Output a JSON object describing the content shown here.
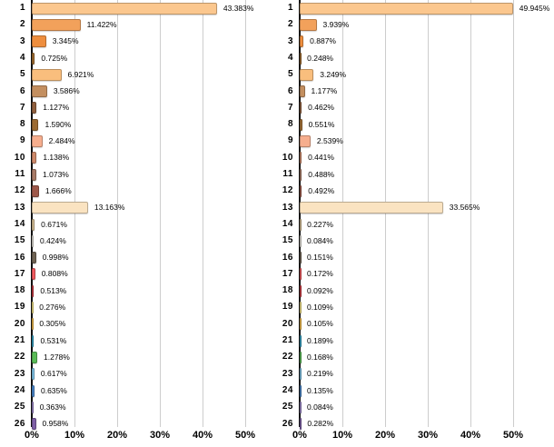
{
  "styles": {
    "background": "#ffffff",
    "axis_color": "#111111",
    "grid_color": "#cdcdcd",
    "text_color": "#000000"
  },
  "palette": [
    "#FBC78E",
    "#F2A15B",
    "#EE8E3E",
    "#9E6B2F",
    "#F9BE7D",
    "#C38F60",
    "#91603F",
    "#9C6B33",
    "#F6AE8E",
    "#CE8A6B",
    "#A87B67",
    "#9D584A",
    "#FAE3C1",
    "#D3BD95",
    "#E7E4DC",
    "#6F6354",
    "#F25A5F",
    "#CC3B43",
    "#F5E488",
    "#F4BE4E",
    "#35A2C4",
    "#5ABB57",
    "#7FC3E6",
    "#4A86C9",
    "#9C88C9",
    "#7E5FA6"
  ],
  "chart_data": [
    {
      "type": "bar",
      "orientation": "horizontal",
      "title": "",
      "xlabel": "",
      "ylabel": "",
      "grid": true,
      "legend": false,
      "xlim": [
        0,
        55
      ],
      "x_ticks": [
        "0%",
        "10%",
        "20%",
        "30%",
        "40%",
        "50%"
      ],
      "x_tick_values": [
        0,
        10,
        20,
        30,
        40,
        50
      ],
      "categories": [
        "1",
        "2",
        "3",
        "4",
        "5",
        "6",
        "7",
        "8",
        "9",
        "10",
        "11",
        "12",
        "13",
        "14",
        "15",
        "16",
        "17",
        "18",
        "19",
        "20",
        "21",
        "22",
        "23",
        "24",
        "25",
        "26"
      ],
      "values": [
        43.383,
        11.422,
        3.345,
        0.725,
        6.921,
        3.586,
        1.127,
        1.59,
        2.484,
        1.138,
        1.073,
        1.666,
        13.163,
        0.671,
        0.424,
        0.998,
        0.808,
        0.513,
        0.276,
        0.305,
        0.531,
        1.278,
        0.617,
        0.635,
        0.363,
        0.958
      ],
      "value_labels": [
        "43.383%",
        "11.422%",
        "3.345%",
        "0.725%",
        "6.921%",
        "3.586%",
        "1.127%",
        "1.590%",
        "2.484%",
        "1.138%",
        "1.073%",
        "1.666%",
        "13.163%",
        "0.671%",
        "0.424%",
        "0.998%",
        "0.808%",
        "0.513%",
        "0.276%",
        "0.305%",
        "0.531%",
        "1.278%",
        "0.617%",
        "0.635%",
        "0.363%",
        "0.958%"
      ]
    },
    {
      "type": "bar",
      "orientation": "horizontal",
      "title": "",
      "xlabel": "",
      "ylabel": "",
      "grid": true,
      "legend": false,
      "xlim": [
        0,
        55
      ],
      "x_ticks": [
        "0%",
        "10%",
        "20%",
        "30%",
        "40%",
        "50%"
      ],
      "x_tick_values": [
        0,
        10,
        20,
        30,
        40,
        50
      ],
      "categories": [
        "1",
        "2",
        "3",
        "4",
        "5",
        "6",
        "7",
        "8",
        "9",
        "10",
        "11",
        "12",
        "13",
        "14",
        "15",
        "16",
        "17",
        "18",
        "19",
        "20",
        "21",
        "22",
        "23",
        "24",
        "25",
        "26"
      ],
      "values": [
        49.945,
        3.939,
        0.887,
        0.248,
        3.249,
        1.177,
        0.462,
        0.551,
        2.539,
        0.441,
        0.488,
        0.492,
        33.565,
        0.227,
        0.084,
        0.151,
        0.172,
        0.092,
        0.109,
        0.105,
        0.189,
        0.168,
        0.219,
        0.135,
        0.084,
        0.282
      ],
      "value_labels": [
        "49.945%",
        "3.939%",
        "0.887%",
        "0.248%",
        "3.249%",
        "1.177%",
        "0.462%",
        "0.551%",
        "2.539%",
        "0.441%",
        "0.488%",
        "0.492%",
        "33.565%",
        "0.227%",
        "0.084%",
        "0.151%",
        "0.172%",
        "0.092%",
        "0.109%",
        "0.105%",
        "0.189%",
        "0.168%",
        "0.219%",
        "0.135%",
        "0.084%",
        "0.282%"
      ]
    }
  ]
}
